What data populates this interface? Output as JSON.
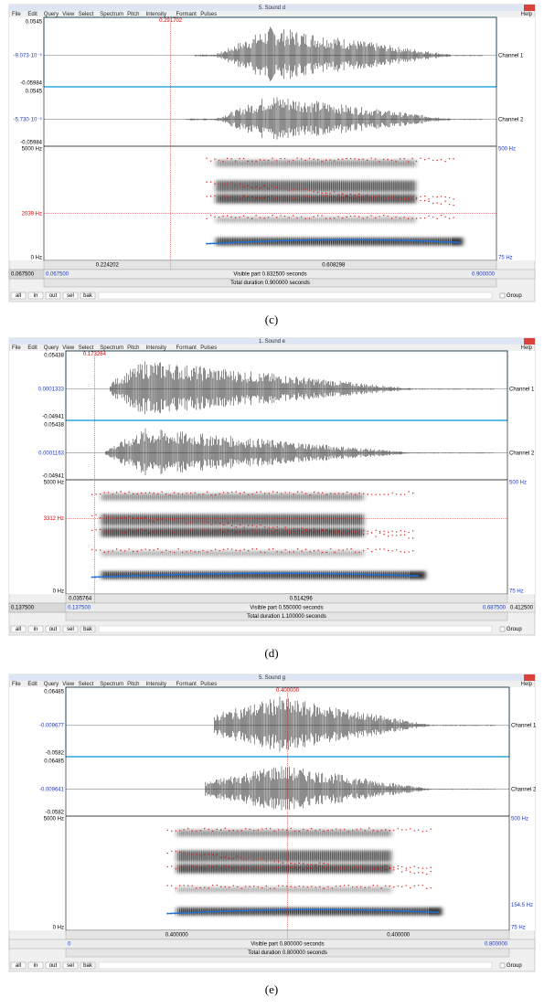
{
  "windows": [
    {
      "title": "5. Sound d",
      "menu": [
        "File",
        "Edit",
        "Query",
        "View",
        "Select",
        "Spectrum",
        "Pitch",
        "Intensity",
        "Formant",
        "Pulses"
      ],
      "help": "Help",
      "cursor": "0.291702",
      "channels": [
        {
          "name": "Channel 1",
          "top": "0.0545",
          "mid": "-9.073·10⁻⁵",
          "bottom": "-0.05984"
        },
        {
          "name": "Channel 2",
          "top": "0.0545",
          "mid": "-5.730·10⁻⁵",
          "bottom": "-0.05984"
        }
      ],
      "freq_labels": [
        "5000 Hz",
        "2039 Hz",
        "0 Hz"
      ],
      "pitch_labels": [
        "500 Hz",
        "75 Hz"
      ],
      "times": [
        "0.224202",
        "0.608298"
      ],
      "left": [
        "0.067500",
        "0.067500"
      ],
      "visible": "Visible part 0.832500 seconds",
      "right": [
        "0.900000"
      ],
      "total": "Total duration 0.900000 seconds",
      "buttons": [
        "all",
        "in",
        "out",
        "sel",
        "bak"
      ],
      "group": "Group",
      "caption": "(c)"
    },
    {
      "title": "1. Sound e",
      "menu": [
        "File",
        "Edit",
        "Query",
        "View",
        "Select",
        "Spectrum",
        "Pitch",
        "Intensity",
        "Formant",
        "Pulses"
      ],
      "help": "Help",
      "cursor": "0.173264",
      "channels": [
        {
          "name": "Channel 1",
          "top": "0.05438",
          "mid": "0.0001333",
          "bottom": "-0.04941"
        },
        {
          "name": "Channel 2",
          "top": "0.05438",
          "mid": "0.0001163",
          "bottom": "-0.04941"
        }
      ],
      "freq_labels": [
        "5000 Hz",
        "3312 Hz",
        "0 Hz"
      ],
      "pitch_labels": [
        "500 Hz",
        "75 Hz"
      ],
      "times": [
        "0.035764",
        "0.514296"
      ],
      "left": [
        "0.137500",
        "0.137500"
      ],
      "visible": "Visible part 0.550000 seconds",
      "right": [
        "0.687500",
        "0.412500"
      ],
      "total": "Total duration 1.100000 seconds",
      "buttons": [
        "all",
        "in",
        "out",
        "sel",
        "bak"
      ],
      "group": "Group",
      "caption": "(d)"
    },
    {
      "title": "5. Sound g",
      "menu": [
        "File",
        "Edit",
        "Query",
        "View",
        "Select",
        "Spectrum",
        "Pitch",
        "Intensity",
        "Formant",
        "Pulses"
      ],
      "help": "Help",
      "cursor": "0.400000",
      "channels": [
        {
          "name": "Channel 1",
          "top": "0.06485",
          "mid": "-0.009677",
          "bottom": "-0.0582"
        },
        {
          "name": "Channel 2",
          "top": "0.06485",
          "mid": "-0.009641",
          "bottom": "-0.0582"
        }
      ],
      "freq_labels": [
        "5000 Hz",
        "0 Hz"
      ],
      "pitch_labels": [
        "500 Hz",
        "154.5 Hz",
        "75 Hz"
      ],
      "times": [
        "0.400000",
        "0.400000"
      ],
      "left": [
        "0"
      ],
      "visible": "Visible part 0.800000 seconds",
      "right": [
        "0.800000"
      ],
      "total": "Total duration 0.800000 seconds",
      "buttons": [
        "all",
        "in",
        "out",
        "sel",
        "bak"
      ],
      "group": "Group",
      "caption": "(e)"
    }
  ]
}
